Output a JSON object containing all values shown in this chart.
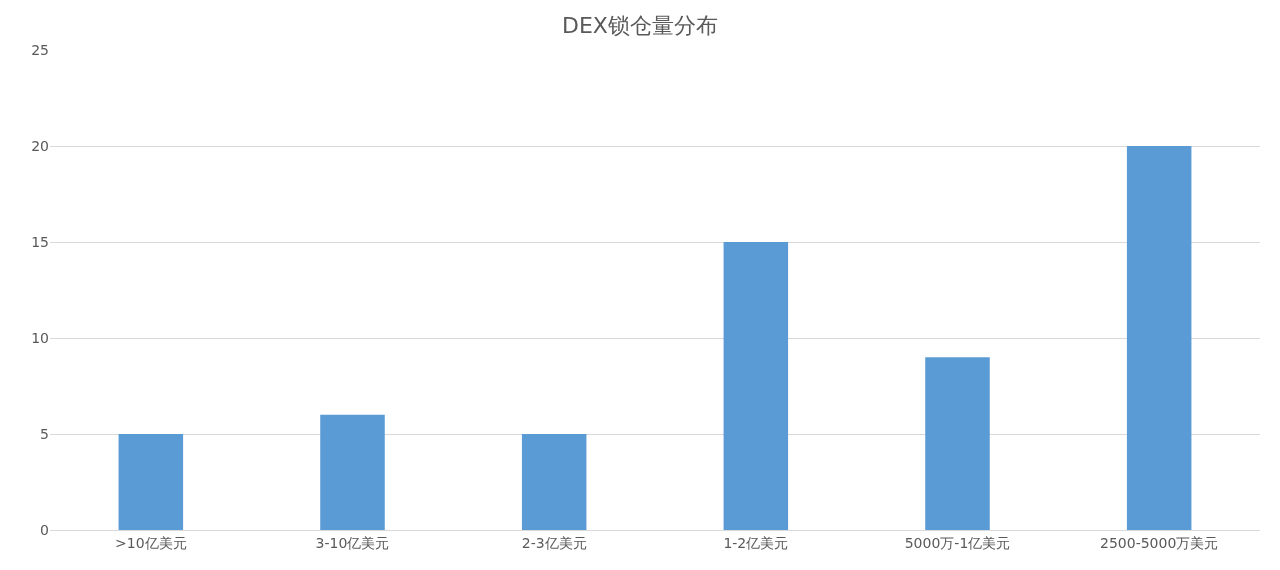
{
  "chart_data": {
    "type": "bar",
    "title": "DEX锁仓量分布",
    "categories": [
      ">10亿美元",
      "3-10亿美元",
      "2-3亿美元",
      "1-2亿美元",
      "5000万-1亿美元",
      "2500-5000万美元"
    ],
    "values": [
      5,
      6,
      5,
      15,
      9,
      20
    ],
    "color": "#5b9bd5",
    "ylim": [
      0,
      25
    ],
    "yticks": [
      0,
      5,
      10,
      15,
      20,
      25
    ],
    "grid": "y"
  }
}
